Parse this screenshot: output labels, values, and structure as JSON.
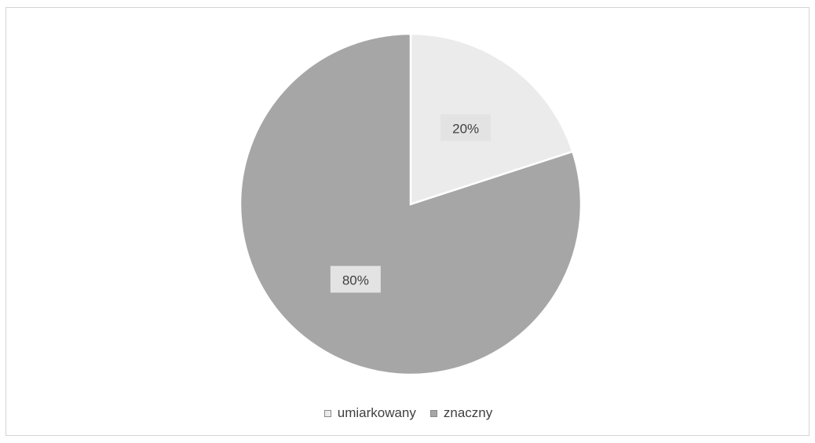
{
  "chart_data": {
    "type": "pie",
    "title": "",
    "categories": [
      "umiarkowany",
      "znaczny"
    ],
    "values": [
      20,
      80
    ],
    "data_labels": [
      "20%",
      "80%"
    ],
    "colors": [
      "#ebebeb",
      "#a6a6a6"
    ],
    "slice_border_color": "#ffffff",
    "start_angle_deg": 0,
    "direction": "clockwise",
    "legend": {
      "position": "bottom",
      "entries": [
        "umiarkowany",
        "znaczny"
      ]
    }
  }
}
